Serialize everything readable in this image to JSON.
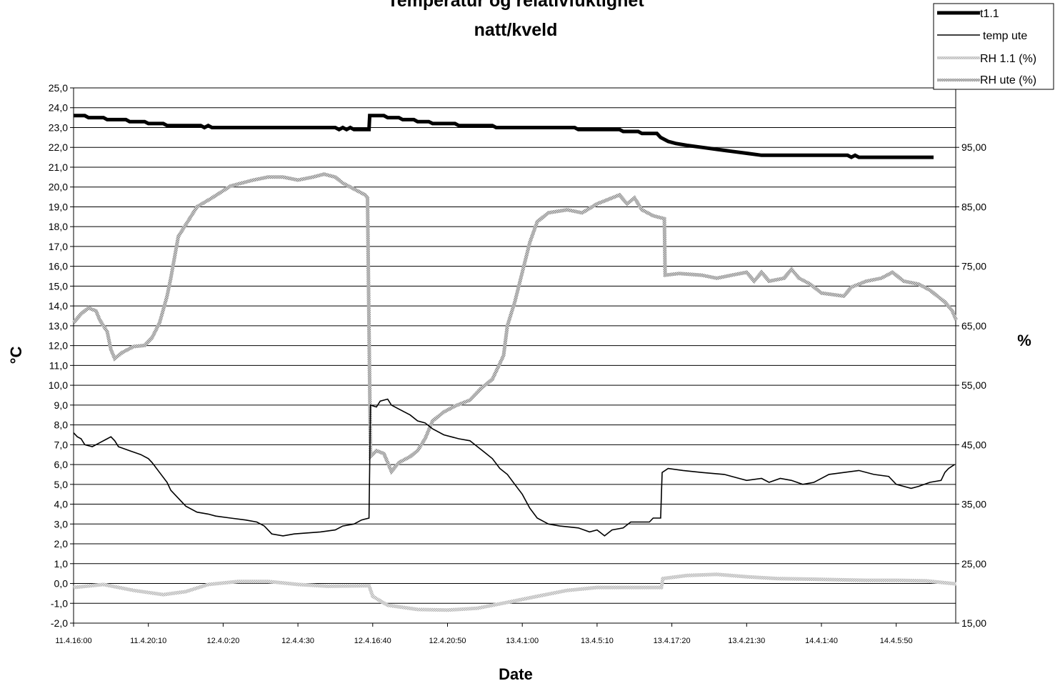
{
  "chart_data": {
    "type": "line",
    "title_line1": "Temperatur og relativfuktighet",
    "title_line2": "natt/kveld",
    "xlabel": "Date",
    "ylabel": "°C",
    "y2label": "%",
    "ylim": [
      -2,
      25
    ],
    "y2lim": [
      15,
      105
    ],
    "y_ticks": [
      "25,0",
      "24,0",
      "23,0",
      "22,0",
      "21,0",
      "20,0",
      "19,0",
      "18,0",
      "17,0",
      "16,0",
      "15,0",
      "14,0",
      "13,0",
      "12,0",
      "11,0",
      "10,0",
      "9,0",
      "8,0",
      "7,0",
      "6,0",
      "5,0",
      "4,0",
      "3,0",
      "2,0",
      "1,0",
      "0,0",
      "-1,0",
      "-2,0"
    ],
    "y2_ticks": [
      "95,00",
      "85,00",
      "75,00",
      "65,00",
      "55,00",
      "45,00",
      "35,00",
      "25,00",
      "15,00"
    ],
    "x_ticks": [
      "11.4.16:00",
      "11.4.20:10",
      "12.4.0:20",
      "12.4.4:30",
      "12.4.16:40",
      "12.4.20:50",
      "13.4.1:00",
      "13.4.5:10",
      "13.4.17:20",
      "13.4.21:30",
      "14.4.1:40",
      "14.4.5:50"
    ],
    "x_range": [
      0,
      11.7
    ],
    "grid": true,
    "legend_position": "top-right",
    "series": [
      {
        "name": "t1.1",
        "axis": "left",
        "color": "#000000",
        "style": "thick",
        "points": [
          [
            0,
            23.6
          ],
          [
            0.15,
            23.6
          ],
          [
            0.2,
            23.5
          ],
          [
            0.4,
            23.5
          ],
          [
            0.45,
            23.4
          ],
          [
            0.7,
            23.4
          ],
          [
            0.75,
            23.3
          ],
          [
            0.95,
            23.3
          ],
          [
            1,
            23.2
          ],
          [
            1.2,
            23.2
          ],
          [
            1.25,
            23.1
          ],
          [
            1.7,
            23.1
          ],
          [
            1.75,
            23.0
          ],
          [
            1.8,
            23.1
          ],
          [
            1.85,
            23.0
          ],
          [
            3.5,
            23.0
          ],
          [
            3.55,
            22.9
          ],
          [
            3.6,
            23.0
          ],
          [
            3.65,
            22.9
          ],
          [
            3.7,
            23.0
          ],
          [
            3.75,
            22.9
          ],
          [
            3.95,
            22.9
          ],
          [
            3.96,
            23.6
          ],
          [
            4.15,
            23.6
          ],
          [
            4.2,
            23.5
          ],
          [
            4.35,
            23.5
          ],
          [
            4.4,
            23.4
          ],
          [
            4.55,
            23.4
          ],
          [
            4.6,
            23.3
          ],
          [
            4.75,
            23.3
          ],
          [
            4.8,
            23.2
          ],
          [
            5.1,
            23.2
          ],
          [
            5.15,
            23.1
          ],
          [
            5.6,
            23.1
          ],
          [
            5.65,
            23.0
          ],
          [
            6.7,
            23.0
          ],
          [
            6.75,
            22.9
          ],
          [
            7.3,
            22.9
          ],
          [
            7.35,
            22.8
          ],
          [
            7.55,
            22.8
          ],
          [
            7.6,
            22.7
          ],
          [
            7.8,
            22.7
          ],
          [
            7.85,
            22.5
          ],
          [
            7.95,
            22.3
          ],
          [
            8.05,
            22.2
          ],
          [
            8.2,
            22.1
          ],
          [
            8.4,
            22.0
          ],
          [
            8.6,
            21.9
          ],
          [
            8.8,
            21.8
          ],
          [
            9.0,
            21.7
          ],
          [
            9.2,
            21.6
          ],
          [
            10.35,
            21.6
          ],
          [
            10.4,
            21.5
          ],
          [
            10.45,
            21.6
          ],
          [
            10.5,
            21.5
          ],
          [
            11.5,
            21.5
          ]
        ]
      },
      {
        "name": "temp ute",
        "axis": "left",
        "color": "#000000",
        "style": "thin",
        "points": [
          [
            0,
            7.6
          ],
          [
            0.05,
            7.4
          ],
          [
            0.1,
            7.3
          ],
          [
            0.15,
            7.0
          ],
          [
            0.25,
            6.9
          ],
          [
            0.35,
            7.1
          ],
          [
            0.45,
            7.3
          ],
          [
            0.5,
            7.4
          ],
          [
            0.55,
            7.2
          ],
          [
            0.6,
            6.9
          ],
          [
            0.75,
            6.7
          ],
          [
            0.9,
            6.5
          ],
          [
            1.0,
            6.3
          ],
          [
            1.05,
            6.1
          ],
          [
            1.15,
            5.6
          ],
          [
            1.25,
            5.1
          ],
          [
            1.3,
            4.7
          ],
          [
            1.4,
            4.3
          ],
          [
            1.5,
            3.9
          ],
          [
            1.65,
            3.6
          ],
          [
            1.8,
            3.5
          ],
          [
            1.9,
            3.4
          ],
          [
            2.1,
            3.3
          ],
          [
            2.3,
            3.2
          ],
          [
            2.45,
            3.1
          ],
          [
            2.55,
            2.9
          ],
          [
            2.6,
            2.7
          ],
          [
            2.65,
            2.5
          ],
          [
            2.8,
            2.4
          ],
          [
            2.95,
            2.5
          ],
          [
            3.3,
            2.6
          ],
          [
            3.5,
            2.7
          ],
          [
            3.6,
            2.9
          ],
          [
            3.75,
            3.0
          ],
          [
            3.85,
            3.2
          ],
          [
            3.95,
            3.3
          ],
          [
            3.97,
            9.0
          ],
          [
            4.05,
            8.9
          ],
          [
            4.1,
            9.2
          ],
          [
            4.2,
            9.3
          ],
          [
            4.25,
            9.0
          ],
          [
            4.35,
            8.8
          ],
          [
            4.5,
            8.5
          ],
          [
            4.6,
            8.2
          ],
          [
            4.7,
            8.1
          ],
          [
            4.8,
            7.8
          ],
          [
            4.95,
            7.5
          ],
          [
            5.15,
            7.3
          ],
          [
            5.3,
            7.2
          ],
          [
            5.4,
            6.9
          ],
          [
            5.5,
            6.6
          ],
          [
            5.6,
            6.3
          ],
          [
            5.7,
            5.8
          ],
          [
            5.8,
            5.5
          ],
          [
            5.9,
            5.0
          ],
          [
            6.0,
            4.5
          ],
          [
            6.1,
            3.8
          ],
          [
            6.2,
            3.3
          ],
          [
            6.35,
            3.0
          ],
          [
            6.5,
            2.9
          ],
          [
            6.75,
            2.8
          ],
          [
            6.9,
            2.6
          ],
          [
            7.0,
            2.7
          ],
          [
            7.1,
            2.4
          ],
          [
            7.2,
            2.7
          ],
          [
            7.35,
            2.8
          ],
          [
            7.45,
            3.1
          ],
          [
            7.7,
            3.1
          ],
          [
            7.75,
            3.3
          ],
          [
            7.85,
            3.3
          ],
          [
            7.87,
            5.6
          ],
          [
            7.95,
            5.8
          ],
          [
            8.15,
            5.7
          ],
          [
            8.4,
            5.6
          ],
          [
            8.7,
            5.5
          ],
          [
            8.9,
            5.3
          ],
          [
            9.0,
            5.2
          ],
          [
            9.2,
            5.3
          ],
          [
            9.3,
            5.1
          ],
          [
            9.45,
            5.3
          ],
          [
            9.6,
            5.2
          ],
          [
            9.75,
            5.0
          ],
          [
            9.9,
            5.1
          ],
          [
            10.1,
            5.5
          ],
          [
            10.3,
            5.6
          ],
          [
            10.5,
            5.7
          ],
          [
            10.7,
            5.5
          ],
          [
            10.9,
            5.4
          ],
          [
            11.0,
            5.0
          ],
          [
            11.2,
            4.8
          ],
          [
            11.3,
            4.9
          ],
          [
            11.45,
            5.1
          ],
          [
            11.6,
            5.2
          ],
          [
            11.65,
            5.6
          ],
          [
            11.7,
            5.8
          ],
          [
            11.78,
            6.0
          ]
        ]
      },
      {
        "name": "RH 1.1 (%)",
        "axis": "right",
        "color": "#b0b0b0",
        "style": "light-hatched",
        "points": [
          [
            0,
            21.0
          ],
          [
            0.4,
            21.5
          ],
          [
            0.8,
            20.5
          ],
          [
            1.2,
            19.8
          ],
          [
            1.5,
            20.3
          ],
          [
            1.8,
            21.5
          ],
          [
            2.2,
            22.0
          ],
          [
            2.6,
            22.0
          ],
          [
            3.0,
            21.5
          ],
          [
            3.4,
            21.2
          ],
          [
            3.95,
            21.3
          ],
          [
            4.0,
            19.5
          ],
          [
            4.2,
            18.0
          ],
          [
            4.6,
            17.3
          ],
          [
            5.0,
            17.2
          ],
          [
            5.4,
            17.5
          ],
          [
            5.8,
            18.5
          ],
          [
            6.2,
            19.5
          ],
          [
            6.6,
            20.5
          ],
          [
            7.0,
            21.0
          ],
          [
            7.4,
            21.0
          ],
          [
            7.8,
            21.0
          ],
          [
            7.86,
            21.0
          ],
          [
            7.88,
            22.5
          ],
          [
            8.2,
            23.0
          ],
          [
            8.6,
            23.2
          ],
          [
            9.0,
            22.8
          ],
          [
            9.4,
            22.5
          ],
          [
            9.8,
            22.4
          ],
          [
            10.2,
            22.3
          ],
          [
            10.6,
            22.2
          ],
          [
            11.0,
            22.2
          ],
          [
            11.4,
            22.1
          ],
          [
            11.8,
            21.6
          ]
        ]
      },
      {
        "name": "RH ute (%)",
        "axis": "right",
        "color": "#9a9a9a",
        "style": "hatched",
        "points": [
          [
            0,
            65.5
          ],
          [
            0.1,
            67.0
          ],
          [
            0.2,
            68.0
          ],
          [
            0.3,
            67.5
          ],
          [
            0.35,
            66.0
          ],
          [
            0.45,
            64.0
          ],
          [
            0.5,
            61.0
          ],
          [
            0.55,
            59.5
          ],
          [
            0.65,
            60.5
          ],
          [
            0.8,
            61.5
          ],
          [
            0.95,
            61.7
          ],
          [
            1.05,
            63.0
          ],
          [
            1.15,
            65.5
          ],
          [
            1.25,
            70.0
          ],
          [
            1.3,
            73.0
          ],
          [
            1.4,
            80.0
          ],
          [
            1.5,
            82.0
          ],
          [
            1.65,
            85.0
          ],
          [
            1.85,
            86.5
          ],
          [
            2.1,
            88.5
          ],
          [
            2.4,
            89.5
          ],
          [
            2.6,
            90.0
          ],
          [
            2.8,
            90.0
          ],
          [
            3.0,
            89.5
          ],
          [
            3.2,
            90.0
          ],
          [
            3.35,
            90.5
          ],
          [
            3.5,
            90.0
          ],
          [
            3.6,
            89.0
          ],
          [
            3.75,
            88.0
          ],
          [
            3.9,
            87.0
          ],
          [
            3.93,
            86.5
          ],
          [
            3.97,
            43.0
          ],
          [
            4.05,
            44.0
          ],
          [
            4.15,
            43.5
          ],
          [
            4.25,
            40.5
          ],
          [
            4.35,
            42.0
          ],
          [
            4.5,
            43.0
          ],
          [
            4.6,
            44.0
          ],
          [
            4.7,
            46.0
          ],
          [
            4.8,
            49.0
          ],
          [
            4.95,
            50.5
          ],
          [
            5.1,
            51.5
          ],
          [
            5.3,
            52.5
          ],
          [
            5.45,
            54.5
          ],
          [
            5.6,
            56.0
          ],
          [
            5.75,
            60.0
          ],
          [
            5.8,
            65.0
          ],
          [
            5.9,
            69.0
          ],
          [
            6.0,
            74.0
          ],
          [
            6.1,
            79.0
          ],
          [
            6.2,
            82.5
          ],
          [
            6.35,
            84.0
          ],
          [
            6.6,
            84.5
          ],
          [
            6.8,
            84.0
          ],
          [
            7.0,
            85.5
          ],
          [
            7.2,
            86.5
          ],
          [
            7.3,
            87.0
          ],
          [
            7.4,
            85.5
          ],
          [
            7.5,
            86.5
          ],
          [
            7.6,
            84.5
          ],
          [
            7.75,
            83.5
          ],
          [
            7.9,
            83.0
          ],
          [
            7.91,
            73.5
          ],
          [
            8.1,
            73.8
          ],
          [
            8.4,
            73.5
          ],
          [
            8.6,
            73.0
          ],
          [
            8.8,
            73.5
          ],
          [
            9.0,
            74.0
          ],
          [
            9.1,
            72.5
          ],
          [
            9.2,
            74.0
          ],
          [
            9.3,
            72.5
          ],
          [
            9.5,
            73.0
          ],
          [
            9.6,
            74.5
          ],
          [
            9.7,
            73.0
          ],
          [
            9.85,
            72.0
          ],
          [
            10.0,
            70.5
          ],
          [
            10.3,
            70.0
          ],
          [
            10.4,
            71.5
          ],
          [
            10.6,
            72.5
          ],
          [
            10.8,
            73.0
          ],
          [
            10.95,
            74.0
          ],
          [
            11.1,
            72.5
          ],
          [
            11.3,
            72.0
          ],
          [
            11.45,
            71.0
          ],
          [
            11.55,
            70.0
          ],
          [
            11.65,
            69.0
          ],
          [
            11.75,
            67.5
          ],
          [
            11.8,
            66.0
          ]
        ]
      }
    ]
  }
}
